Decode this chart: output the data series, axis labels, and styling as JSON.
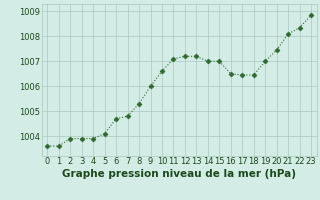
{
  "x": [
    0,
    1,
    2,
    3,
    4,
    5,
    6,
    7,
    8,
    9,
    10,
    11,
    12,
    13,
    14,
    15,
    16,
    17,
    18,
    19,
    20,
    21,
    22,
    23
  ],
  "y": [
    1003.6,
    1003.6,
    1003.9,
    1003.9,
    1003.9,
    1004.1,
    1004.7,
    1004.8,
    1005.3,
    1006.0,
    1006.6,
    1007.1,
    1007.2,
    1007.2,
    1007.0,
    1007.0,
    1006.5,
    1006.45,
    1006.45,
    1007.0,
    1007.45,
    1008.1,
    1008.35,
    1008.85
  ],
  "line_color": "#2d6a2d",
  "marker": "D",
  "marker_size": 2.5,
  "bg_color": "#d4ece6",
  "grid_color": "#b0cec6",
  "xlabel": "Graphe pression niveau de la mer (hPa)",
  "xlabel_color": "#1a4a1a",
  "xlabel_fontsize": 7.5,
  "tick_color": "#1a4a1a",
  "tick_fontsize": 6.0,
  "ylim": [
    1003.2,
    1009.3
  ],
  "yticks": [
    1004,
    1005,
    1006,
    1007,
    1008,
    1009
  ],
  "xlim": [
    -0.5,
    23.5
  ],
  "xticks": [
    0,
    1,
    2,
    3,
    4,
    5,
    6,
    7,
    8,
    9,
    10,
    11,
    12,
    13,
    14,
    15,
    16,
    17,
    18,
    19,
    20,
    21,
    22,
    23
  ]
}
